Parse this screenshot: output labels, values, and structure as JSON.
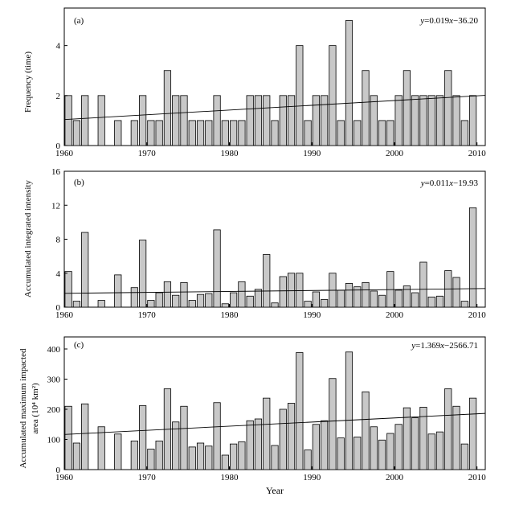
{
  "chart_data": [
    {
      "type": "bar",
      "panel_label": "(a)",
      "ylabel": "Frequency (time)",
      "xlabel": "",
      "years": [
        1960,
        1961,
        1962,
        1964,
        1966,
        1968,
        1969,
        1970,
        1971,
        1972,
        1973,
        1974,
        1975,
        1976,
        1977,
        1978,
        1979,
        1980,
        1981,
        1982,
        1983,
        1984,
        1985,
        1986,
        1987,
        1988,
        1989,
        1990,
        1991,
        1992,
        1993,
        1994,
        1995,
        1996,
        1997,
        1998,
        1999,
        2000,
        2001,
        2002,
        2003,
        2004,
        2005,
        2006,
        2007,
        2008,
        2009
      ],
      "values": [
        2,
        1,
        2,
        2,
        1,
        1,
        2,
        1,
        1,
        3,
        2,
        2,
        1,
        1,
        1,
        2,
        1,
        1,
        1,
        2,
        2,
        2,
        1,
        2,
        2,
        4,
        1,
        2,
        2,
        4,
        1,
        5,
        1,
        3,
        2,
        1,
        1,
        2,
        3,
        2,
        2,
        2,
        2,
        3,
        2,
        1,
        2
      ],
      "xlim": [
        1960,
        2011
      ],
      "ylim": [
        0,
        5.5
      ],
      "xticks": [
        1960,
        1970,
        1980,
        1990,
        2000,
        2010
      ],
      "yticks": [
        0,
        2,
        4
      ],
      "trend": {
        "slope": 0.019,
        "intercept": -36.2
      },
      "equation": {
        "y": "y",
        "eq": "=0.019",
        "x": "x",
        "rest": "−36.20"
      }
    },
    {
      "type": "bar",
      "panel_label": "(b)",
      "ylabel": "Accumulated integrated intensity",
      "xlabel": "",
      "years": [
        1960,
        1961,
        1962,
        1964,
        1966,
        1968,
        1969,
        1970,
        1971,
        1972,
        1973,
        1974,
        1975,
        1976,
        1977,
        1978,
        1979,
        1980,
        1981,
        1982,
        1983,
        1984,
        1985,
        1986,
        1987,
        1988,
        1989,
        1990,
        1991,
        1992,
        1993,
        1994,
        1995,
        1996,
        1997,
        1998,
        1999,
        2000,
        2001,
        2002,
        2003,
        2004,
        2005,
        2006,
        2007,
        2008,
        2009
      ],
      "values": [
        4.2,
        0.7,
        8.8,
        0.8,
        3.8,
        2.3,
        7.9,
        0.8,
        1.7,
        3.0,
        1.4,
        2.9,
        0.8,
        1.5,
        1.6,
        9.1,
        0.4,
        1.7,
        3.0,
        1.3,
        2.1,
        6.2,
        0.5,
        3.6,
        4.0,
        4.0,
        0.7,
        1.8,
        0.9,
        4.0,
        2.0,
        2.8,
        2.4,
        2.9,
        1.9,
        1.4,
        4.2,
        2.0,
        2.5,
        1.7,
        5.3,
        1.2,
        1.3,
        4.3,
        3.5,
        0.7,
        11.7
      ],
      "xlim": [
        1960,
        2011
      ],
      "ylim": [
        0,
        16
      ],
      "xticks": [
        1960,
        1970,
        1980,
        1990,
        2000,
        2010
      ],
      "yticks": [
        0,
        4,
        8,
        12,
        16
      ],
      "trend": {
        "slope": 0.011,
        "intercept": -19.93
      },
      "equation": {
        "y": "y",
        "eq": "=0.011",
        "x": "x",
        "rest": "−19.93"
      }
    },
    {
      "type": "bar",
      "panel_label": "(c)",
      "ylabel_line1": "Accumulated maximum impacted",
      "ylabel_line2": "area (10⁴ km²)",
      "xlabel": "Year",
      "years": [
        1960,
        1961,
        1962,
        1964,
        1966,
        1968,
        1969,
        1970,
        1971,
        1972,
        1973,
        1974,
        1975,
        1976,
        1977,
        1978,
        1979,
        1980,
        1981,
        1982,
        1983,
        1984,
        1985,
        1986,
        1987,
        1988,
        1989,
        1990,
        1991,
        1992,
        1993,
        1994,
        1995,
        1996,
        1997,
        1998,
        1999,
        2000,
        2001,
        2002,
        2003,
        2004,
        2005,
        2006,
        2007,
        2008,
        2009
      ],
      "values": [
        210,
        88,
        218,
        142,
        118,
        95,
        212,
        68,
        95,
        268,
        158,
        210,
        75,
        88,
        78,
        222,
        48,
        85,
        92,
        162,
        168,
        237,
        80,
        200,
        220,
        388,
        65,
        150,
        162,
        302,
        105,
        390,
        108,
        258,
        142,
        98,
        120,
        150,
        205,
        172,
        207,
        118,
        125,
        268,
        210,
        85,
        237
      ],
      "xlim": [
        1960,
        2011
      ],
      "ylim": [
        0,
        440
      ],
      "xticks": [
        1960,
        1970,
        1980,
        1990,
        2000,
        2010
      ],
      "yticks": [
        0,
        100,
        200,
        300,
        400
      ],
      "trend": {
        "slope": 1.369,
        "intercept": -2566.71
      },
      "equation": {
        "y": "y",
        "eq": "=1.369",
        "x": "x",
        "rest": "−2566.71"
      }
    }
  ]
}
